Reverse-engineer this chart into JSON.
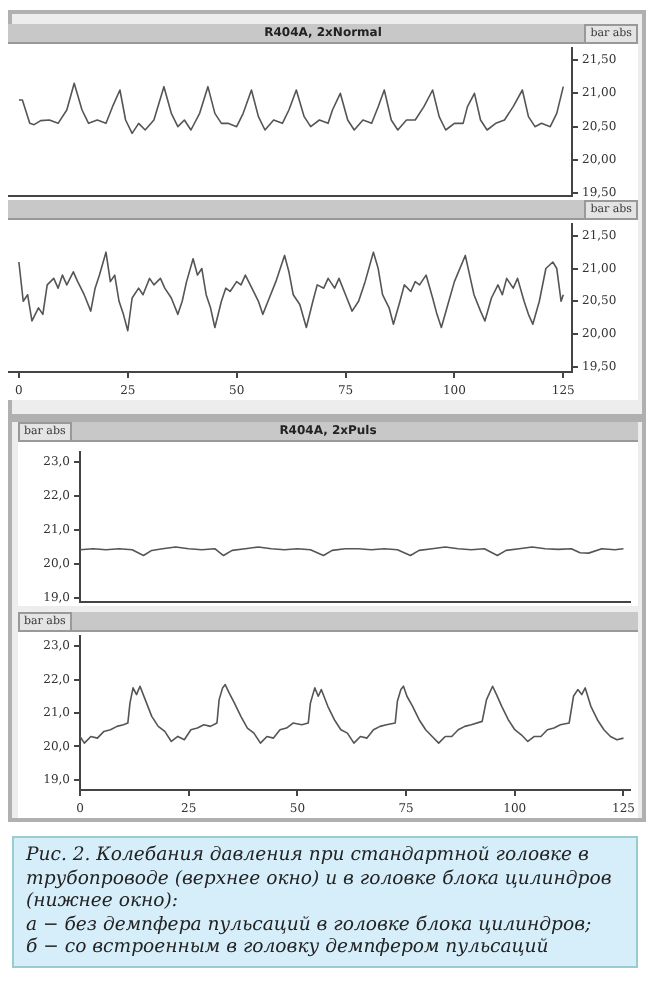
{
  "chart_data": [
    {
      "type": "line",
      "title": "R404A, 2xNormal",
      "ylabel": "bar abs",
      "color": "#555555",
      "grid": false,
      "tick_labels": "y",
      "marker": "none",
      "line_style": "solid",
      "xlim": [
        -2.5,
        127
      ],
      "xticks": [
        0,
        25,
        50,
        75,
        100,
        125
      ],
      "ylim": [
        19.46,
        21.68
      ],
      "yticks": [
        {
          "value": 19.5,
          "label": "19,50"
        },
        {
          "value": 20,
          "label": "20,00"
        },
        {
          "value": 20.5,
          "label": "20,50"
        },
        {
          "value": 21,
          "label": "21,00"
        },
        {
          "value": 21.5,
          "label": "21,50"
        }
      ],
      "x": [
        0,
        0.8,
        2.5,
        3.5,
        5,
        7,
        9,
        11,
        12.7,
        14.5,
        16,
        18,
        20,
        21.5,
        23.2,
        24.5,
        26,
        27.5,
        29,
        31,
        33.3,
        35,
        36.5,
        38,
        39.5,
        41.5,
        43.4,
        45,
        46.5,
        48,
        50,
        51.5,
        53.4,
        55,
        56.5,
        58.5,
        60.5,
        62,
        63.7,
        65.5,
        67,
        69,
        71,
        72,
        73.8,
        75.5,
        77,
        79,
        81,
        82.5,
        83.9,
        85.5,
        87,
        89,
        91,
        93,
        95,
        96.5,
        98,
        100,
        102,
        103,
        104.6,
        106,
        107.5,
        109.5,
        111.5,
        113.5,
        115.6,
        117,
        118.5,
        120,
        122,
        123.5,
        125
      ],
      "values": [
        20.9,
        20.9,
        20.55,
        20.53,
        20.59,
        20.6,
        20.55,
        20.75,
        21.15,
        20.75,
        20.55,
        20.6,
        20.55,
        20.8,
        21.05,
        20.6,
        20.4,
        20.55,
        20.45,
        20.6,
        21.1,
        20.7,
        20.5,
        20.6,
        20.45,
        20.7,
        21.1,
        20.7,
        20.55,
        20.55,
        20.5,
        20.7,
        21.05,
        20.65,
        20.45,
        20.6,
        20.55,
        20.75,
        21.05,
        20.65,
        20.5,
        20.6,
        20.55,
        20.75,
        21.0,
        20.6,
        20.45,
        20.6,
        20.55,
        20.8,
        21.05,
        20.6,
        20.45,
        20.6,
        20.6,
        20.8,
        21.05,
        20.65,
        20.45,
        20.55,
        20.55,
        20.8,
        21.0,
        20.6,
        20.45,
        20.55,
        20.6,
        20.8,
        21.05,
        20.65,
        20.5,
        20.55,
        20.5,
        20.7,
        21.1
      ]
    },
    {
      "type": "line",
      "ylabel": "bar abs",
      "color": "#555555",
      "grid": false,
      "marker": "none",
      "line_style": "solid",
      "xlim": [
        -2.5,
        127
      ],
      "xticks": [
        0,
        25,
        50,
        75,
        100,
        125
      ],
      "ylim": [
        19.42,
        21.68
      ],
      "yticks": [
        {
          "value": 19.5,
          "label": "19,50"
        },
        {
          "value": 20,
          "label": "20,00"
        },
        {
          "value": 20.5,
          "label": "20,50"
        },
        {
          "value": 21,
          "label": "21,00"
        },
        {
          "value": 21.5,
          "label": "21,50"
        }
      ],
      "x": [
        0,
        1,
        2,
        3,
        4.5,
        5.5,
        6.5,
        8,
        9,
        10,
        11,
        12.5,
        13.5,
        15,
        16.5,
        17.5,
        18.5,
        20,
        21,
        22,
        23,
        24,
        25,
        26,
        27.5,
        28.5,
        30,
        31,
        32.5,
        33.5,
        35,
        36.5,
        37.5,
        38.5,
        40,
        41,
        42,
        43,
        44,
        45,
        46.5,
        47.5,
        48.5,
        50,
        51,
        52,
        53.5,
        55,
        56,
        57.5,
        59,
        61,
        62,
        63,
        64.5,
        66,
        67.5,
        68.5,
        70,
        71,
        72.5,
        73.5,
        75,
        76.5,
        78,
        79.5,
        81.4,
        82.5,
        83.5,
        85,
        86,
        87.5,
        88.5,
        90,
        91,
        92,
        93.5,
        95,
        96,
        97,
        98.5,
        100,
        102.5,
        103.5,
        104.5,
        106,
        107,
        108.5,
        110,
        111,
        112,
        113.5,
        114.5,
        116,
        117,
        118,
        119.5,
        121,
        122.6,
        123.5,
        124.5,
        125
      ],
      "values": [
        21.1,
        20.5,
        20.6,
        20.2,
        20.4,
        20.3,
        20.75,
        20.85,
        20.7,
        20.9,
        20.75,
        20.95,
        20.8,
        20.6,
        20.35,
        20.7,
        20.9,
        21.25,
        20.8,
        20.9,
        20.5,
        20.3,
        20.05,
        20.55,
        20.7,
        20.6,
        20.85,
        20.75,
        20.85,
        20.7,
        20.55,
        20.3,
        20.5,
        20.8,
        21.15,
        20.9,
        21.0,
        20.6,
        20.4,
        20.1,
        20.5,
        20.7,
        20.65,
        20.8,
        20.75,
        20.9,
        20.7,
        20.5,
        20.3,
        20.55,
        20.8,
        21.2,
        20.95,
        20.6,
        20.45,
        20.1,
        20.5,
        20.75,
        20.7,
        20.85,
        20.7,
        20.85,
        20.6,
        20.35,
        20.5,
        20.8,
        21.25,
        21.0,
        20.6,
        20.4,
        20.15,
        20.5,
        20.75,
        20.65,
        20.8,
        20.75,
        20.9,
        20.55,
        20.3,
        20.1,
        20.45,
        20.8,
        21.2,
        20.9,
        20.6,
        20.35,
        20.2,
        20.55,
        20.75,
        20.6,
        20.85,
        20.7,
        20.85,
        20.5,
        20.3,
        20.15,
        20.5,
        21.0,
        21.1,
        21.0,
        20.5,
        20.6
      ]
    },
    {
      "type": "line",
      "title": "R404A, 2xPuls",
      "ylabel": "bar abs",
      "color": "#555555",
      "grid": false,
      "tick_labels": "y",
      "marker": "none",
      "line_style": "solid",
      "xlim": [
        0,
        126.5
      ],
      "ylim": [
        18.88,
        23.3
      ],
      "yticks": [
        {
          "value": 19,
          "label": "19,0"
        },
        {
          "value": 20,
          "label": "20,0"
        },
        {
          "value": 21,
          "label": "21,0"
        },
        {
          "value": 22,
          "label": "22,0"
        },
        {
          "value": 23,
          "label": "23,0"
        }
      ],
      "x": [
        0,
        3,
        6,
        9,
        12,
        14.6,
        16.5,
        19,
        22,
        25,
        28,
        31,
        33,
        35,
        38,
        41,
        44,
        47,
        50,
        53,
        56,
        58,
        61,
        64,
        67,
        70,
        73,
        76,
        78,
        81,
        84,
        87,
        90,
        93,
        96,
        98,
        101,
        104,
        107,
        110,
        113,
        115,
        117,
        120,
        123,
        125
      ],
      "values": [
        20.42,
        20.45,
        20.42,
        20.45,
        20.42,
        20.25,
        20.4,
        20.45,
        20.5,
        20.45,
        20.42,
        20.45,
        20.25,
        20.4,
        20.45,
        20.5,
        20.45,
        20.42,
        20.45,
        20.42,
        20.25,
        20.4,
        20.45,
        20.45,
        20.42,
        20.45,
        20.42,
        20.25,
        20.4,
        20.45,
        20.5,
        20.45,
        20.42,
        20.45,
        20.25,
        20.4,
        20.45,
        20.5,
        20.45,
        20.43,
        20.45,
        20.33,
        20.32,
        20.45,
        20.42,
        20.45
      ]
    },
    {
      "type": "line",
      "ylabel": "bar abs",
      "color": "#555555",
      "grid": false,
      "marker": "none",
      "line_style": "solid",
      "xlim": [
        0,
        126.5
      ],
      "xticks": [
        0,
        25,
        50,
        75,
        100,
        125
      ],
      "ylim": [
        18.7,
        23.3
      ],
      "yticks": [
        {
          "value": 19,
          "label": "19,0"
        },
        {
          "value": 20,
          "label": "20,0"
        },
        {
          "value": 21,
          "label": "21,0"
        },
        {
          "value": 22,
          "label": "22,0"
        },
        {
          "value": 23,
          "label": "23,0"
        }
      ],
      "annotations": [
        "Рис. 2. Колебания давления при стандартной головке в трубопроводе (верхнее окно) и в головке блока цилиндров (нижнее окно):\nа − без демпфера пульсаций в головке блока цилиндров;\nб − со встроенным в головку демпфером пульсаций"
      ],
      "x": [
        0,
        1,
        2.5,
        4,
        5.5,
        7,
        8.5,
        10,
        11,
        11.5,
        12.2,
        13,
        13.8,
        15,
        16.5,
        18,
        19.5,
        21,
        22.5,
        24,
        25.5,
        27,
        28.5,
        30,
        31.5,
        32,
        32.8,
        33.4,
        34.3,
        35.5,
        37,
        38.5,
        40,
        41.5,
        43,
        44.5,
        46,
        47.5,
        49,
        51,
        52.5,
        53,
        54,
        54.8,
        55.5,
        57,
        58.5,
        60,
        61.5,
        63,
        64.5,
        66,
        67.5,
        69,
        70.5,
        72.5,
        73,
        73.8,
        74.4,
        75.2,
        76.5,
        78,
        79.5,
        81,
        82.5,
        84,
        85.5,
        87,
        88.5,
        90,
        92.5,
        93.5,
        94.9,
        95.8,
        97,
        98.5,
        100,
        101.5,
        103,
        104.5,
        106,
        107.5,
        109,
        110.5,
        112.5,
        113.5,
        114.5,
        115.4,
        116.2,
        117.5,
        119,
        120.5,
        122,
        123.5,
        125
      ],
      "values": [
        20.3,
        20.1,
        20.3,
        20.25,
        20.45,
        20.5,
        20.6,
        20.65,
        20.7,
        21.3,
        21.75,
        21.55,
        21.8,
        21.4,
        20.9,
        20.6,
        20.45,
        20.15,
        20.3,
        20.2,
        20.5,
        20.55,
        20.65,
        20.6,
        20.7,
        21.4,
        21.75,
        21.85,
        21.6,
        21.3,
        20.9,
        20.55,
        20.4,
        20.1,
        20.3,
        20.25,
        20.5,
        20.55,
        20.7,
        20.65,
        20.7,
        21.3,
        21.75,
        21.5,
        21.7,
        21.2,
        20.8,
        20.5,
        20.4,
        20.1,
        20.3,
        20.25,
        20.5,
        20.6,
        20.65,
        20.7,
        21.35,
        21.7,
        21.8,
        21.5,
        21.2,
        20.8,
        20.5,
        20.3,
        20.1,
        20.3,
        20.3,
        20.5,
        20.6,
        20.65,
        20.75,
        21.4,
        21.8,
        21.55,
        21.2,
        20.8,
        20.5,
        20.35,
        20.15,
        20.3,
        20.3,
        20.5,
        20.55,
        20.65,
        20.7,
        21.5,
        21.7,
        21.55,
        21.75,
        21.2,
        20.8,
        20.5,
        20.3,
        20.2,
        20.25
      ]
    }
  ]
}
